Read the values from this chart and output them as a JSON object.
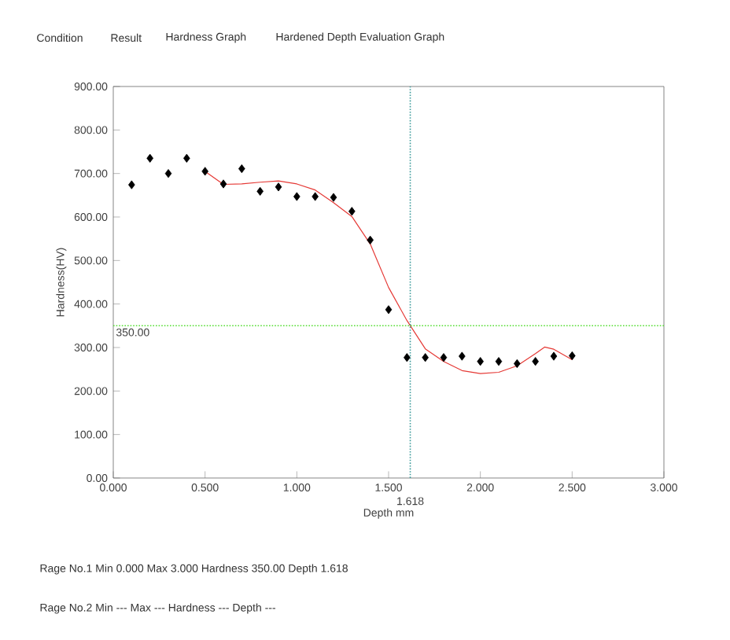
{
  "chart_data": {
    "type": "scatter",
    "xlabel": "Depth mm",
    "ylabel": "Hardness(HV)",
    "xlim": [
      0,
      3
    ],
    "ylim": [
      0,
      900
    ],
    "xticks": [
      {
        "value": 0,
        "label": "0.000"
      },
      {
        "value": 0.5,
        "label": "0.500"
      },
      {
        "value": 1,
        "label": "1.000"
      },
      {
        "value": 1.5,
        "label": "1.500"
      },
      {
        "value": 2,
        "label": "2.000"
      },
      {
        "value": 2.5,
        "label": "2.500"
      },
      {
        "value": 3,
        "label": "3.000"
      }
    ],
    "yticks": [
      {
        "value": 0,
        "label": "0.00"
      },
      {
        "value": 100,
        "label": "100.00"
      },
      {
        "value": 200,
        "label": "200.00"
      },
      {
        "value": 300,
        "label": "300.00"
      },
      {
        "value": 400,
        "label": "400.00"
      },
      {
        "value": 500,
        "label": "500.00"
      },
      {
        "value": 600,
        "label": "600.00"
      },
      {
        "value": 700,
        "label": "700.00"
      },
      {
        "value": 800,
        "label": "800.00"
      },
      {
        "value": 900,
        "label": "900.00"
      }
    ],
    "marker": "diamond",
    "grid": false,
    "series": [
      {
        "color": "#000000",
        "x": [
          0.1,
          0.2,
          0.3,
          0.4,
          0.5,
          0.6,
          0.7,
          0.8,
          0.9,
          1.0,
          1.1,
          1.2,
          1.3,
          1.4,
          1.5,
          1.6,
          1.7,
          1.8,
          1.9,
          2.0,
          2.1,
          2.2,
          2.3,
          2.4,
          2.5
        ],
        "values": [
          674,
          735,
          700,
          735,
          705,
          676,
          711,
          659,
          669,
          647,
          647,
          645,
          613,
          547,
          387,
          277,
          277,
          277,
          280,
          268,
          268,
          263,
          268,
          280,
          281
        ]
      },
      {
        "type": "line",
        "color": "#e53935",
        "marker": "none",
        "x": [
          0.5,
          0.6,
          0.7,
          0.8,
          0.9,
          1.0,
          1.1,
          1.2,
          1.3,
          1.4,
          1.5,
          1.6,
          1.7,
          1.8,
          1.9,
          2.0,
          2.1,
          2.2,
          2.3,
          2.35,
          2.4,
          2.5
        ],
        "values": [
          705,
          675,
          676,
          680,
          683,
          676,
          662,
          633,
          601,
          538,
          438,
          362,
          297,
          268,
          247,
          240,
          243,
          258,
          286,
          301,
          296,
          272
        ]
      }
    ],
    "ref_lines": [
      {
        "axis": "y",
        "value": 350,
        "label": "350.00",
        "color": "#55dd33",
        "line_style": "dotted"
      },
      {
        "axis": "x",
        "value": 1.618,
        "label": "1.618",
        "color": "#3a9a9a",
        "line_style": "dotted"
      }
    ],
    "annotations": [
      "Condition",
      "Result",
      "Hardness Graph",
      "Hardened Depth Evaluation Graph",
      "Rage No.1 Min 0.000  Max 3.000  Hardness 350.00  Depth 1.618",
      "Rage No.2 Min ---  Max ---  Hardness ---  Depth ---"
    ]
  }
}
